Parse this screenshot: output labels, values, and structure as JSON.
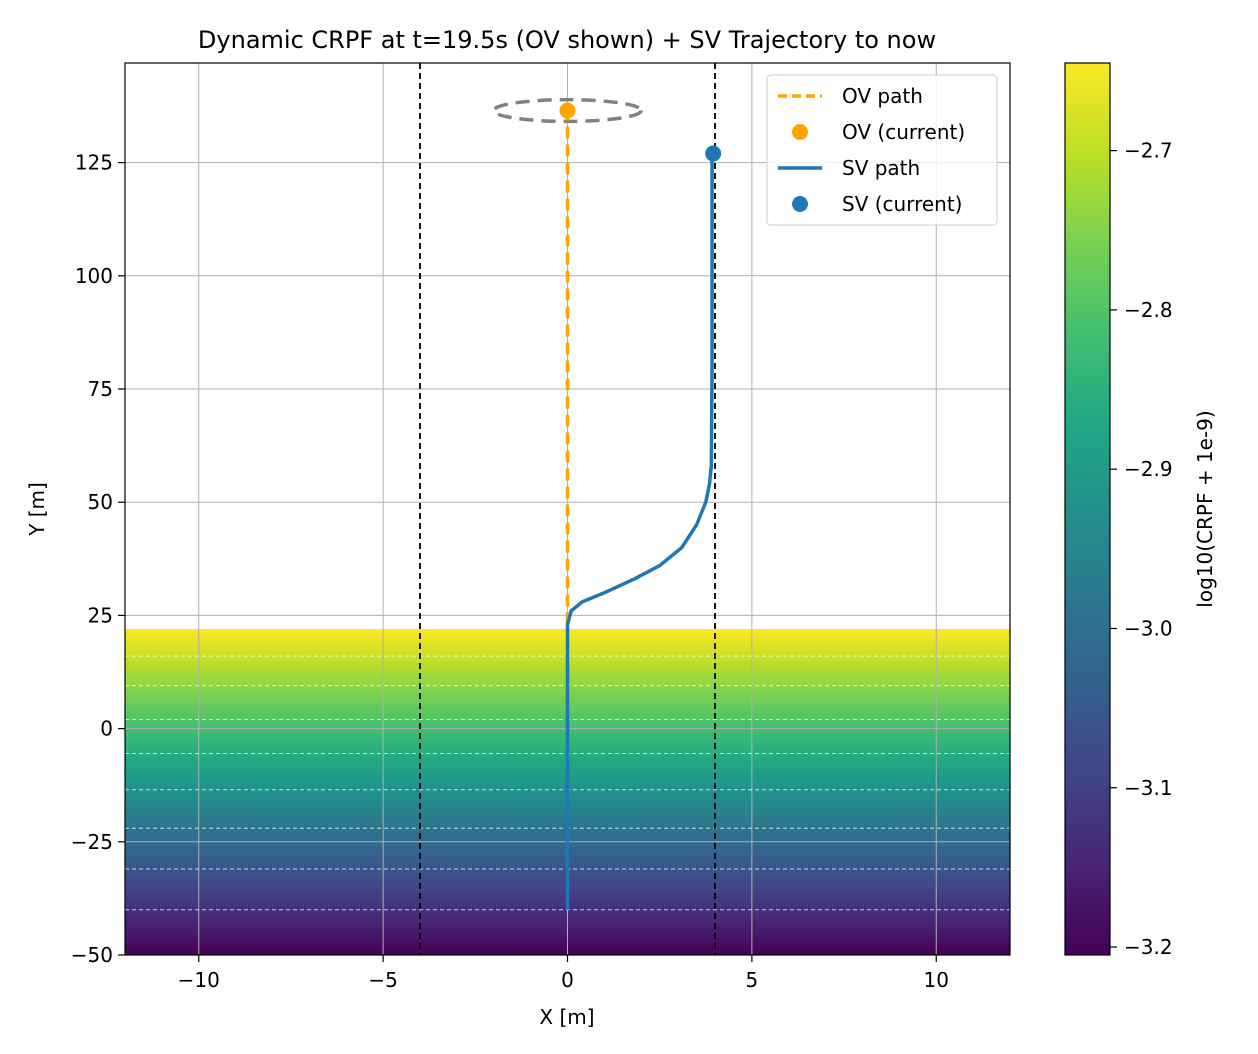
{
  "chart_data": {
    "type": "line",
    "title": "Dynamic CRPF at t=19.5s (OV shown) + SV Trajectory to now",
    "xlabel": "X [m]",
    "ylabel": "Y [m]",
    "xlim": [
      -12,
      12
    ],
    "ylim": [
      -50,
      147
    ],
    "xticks": [
      -10,
      -5,
      0,
      5,
      10
    ],
    "yticks": [
      -50,
      -25,
      0,
      25,
      50,
      75,
      100,
      125
    ],
    "xtick_labels": [
      "−10",
      "−5",
      "0",
      "5",
      "10"
    ],
    "ytick_labels": [
      "−50",
      "−25",
      "0",
      "25",
      "50",
      "75",
      "100",
      "125"
    ],
    "grid": true,
    "legend_position": "top-right",
    "heatmap": {
      "y_range": [
        -50,
        22
      ],
      "colormap": "viridis",
      "value_at_bottom": -3.2,
      "value_at_top": -2.65
    },
    "contour_levels_y": [
      -40,
      -31,
      -22,
      -13.5,
      -5.5,
      2,
      9.5,
      16
    ],
    "lane_boundaries_x": [
      -4,
      4
    ],
    "series": [
      {
        "name": "OV path",
        "style": "dashed",
        "color": "#ffa500",
        "x": [
          0,
          0
        ],
        "y": [
          23,
          136.5
        ]
      },
      {
        "name": "SV path",
        "style": "solid",
        "color": "#1f77b4",
        "x": [
          0,
          0,
          0.1,
          0.4,
          1.0,
          1.8,
          2.5,
          3.1,
          3.5,
          3.75,
          3.85,
          3.9,
          3.92,
          3.92
        ],
        "y": [
          -40,
          23,
          26,
          28,
          30,
          33,
          36,
          40,
          45,
          50,
          54,
          58,
          80,
          127
        ]
      }
    ],
    "points": [
      {
        "name": "OV (current)",
        "color": "#ffa500",
        "x": 0,
        "y": 136.5
      },
      {
        "name": "SV (current)",
        "color": "#1f77b4",
        "x": 3.95,
        "y": 127
      }
    ],
    "ov_ellipse": {
      "cx": 0,
      "cy": 136.5,
      "rx": 2,
      "ry": 2,
      "color": "#808080"
    },
    "legend": [
      {
        "label": "OV path",
        "kind": "dashed-line",
        "color": "#ffa500"
      },
      {
        "label": "OV (current)",
        "kind": "marker",
        "color": "#ffa500"
      },
      {
        "label": "SV path",
        "kind": "line",
        "color": "#1f77b4"
      },
      {
        "label": "SV (current)",
        "kind": "marker",
        "color": "#1f77b4"
      }
    ],
    "colorbar": {
      "label": "log10(CRPF + 1e-9)",
      "vmin": -3.205,
      "vmax": -2.645,
      "ticks": [
        -3.2,
        -3.1,
        -3.0,
        -2.9,
        -2.8,
        -2.7
      ],
      "tick_labels": [
        "−3.2",
        "−3.1",
        "−3.0",
        "−2.9",
        "−2.8",
        "−2.7"
      ]
    }
  }
}
